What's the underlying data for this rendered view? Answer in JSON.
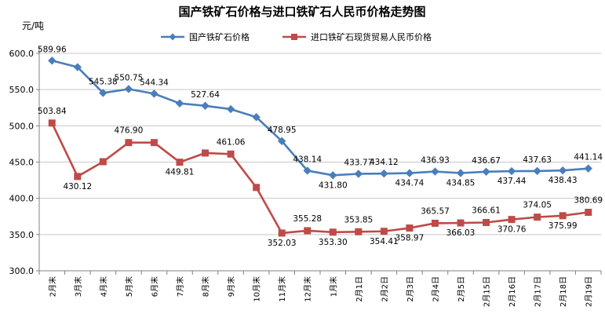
{
  "chart_data": {
    "type": "line",
    "title": "国产铁矿石价格与进口铁矿石人民币价格走势图",
    "unit": "元/吨",
    "ylim": [
      300,
      600
    ],
    "yticks": [
      "300.0",
      "350.0",
      "400.0",
      "450.0",
      "500.0",
      "550.0",
      "600.0"
    ],
    "grid": true,
    "legend_position": "top",
    "categories": [
      "2月末",
      "3月末",
      "4月末",
      "5月末",
      "6月末",
      "7月末",
      "8月末",
      "9月末",
      "10月末",
      "11月末",
      "12月末",
      "1月末",
      "2月1日",
      "2月2日",
      "2月3日",
      "2月4日",
      "2月5日",
      "2月15日",
      "2月16日",
      "2月17日",
      "2月18日",
      "2月19日"
    ],
    "series": [
      {
        "name": "国产铁矿石价格",
        "color": "#4a7ebb",
        "marker": "diamond",
        "values": [
          589.96,
          581,
          545.38,
          550.75,
          544.34,
          531,
          527.64,
          523,
          512,
          478.95,
          438.14,
          431.8,
          433.77,
          434.12,
          434.74,
          436.93,
          434.85,
          436.67,
          437.44,
          437.63,
          438.43,
          441.14
        ],
        "labels": [
          "589.96",
          "",
          "545.38",
          "550.75",
          "544.34",
          "",
          "527.64",
          "",
          "",
          "478.95",
          "438.14",
          "431.80",
          "433.77",
          "434.12",
          "434.74",
          "436.93",
          "434.85",
          "436.67",
          "437.44",
          "437.63",
          "438.43",
          "441.14"
        ]
      },
      {
        "name": "进口铁矿石现货贸易人民币价格",
        "color": "#be4b48",
        "marker": "square",
        "values": [
          503.84,
          430.12,
          450.5,
          476.9,
          476.9,
          449.81,
          462.5,
          461.06,
          415,
          352.03,
          355.28,
          353.3,
          353.85,
          354.41,
          358.97,
          365.57,
          366.03,
          366.61,
          370.76,
          374.05,
          375.99,
          380.69
        ],
        "labels": [
          "503.84",
          "430.12",
          "",
          "476.90",
          "",
          "449.81",
          "",
          "461.06",
          "",
          "352.03",
          "355.28",
          "353.30",
          "353.85",
          "354.41",
          "358.97",
          "365.57",
          "366.03",
          "366.61",
          "370.76",
          "374.05",
          "375.99",
          "380.69"
        ]
      }
    ]
  }
}
